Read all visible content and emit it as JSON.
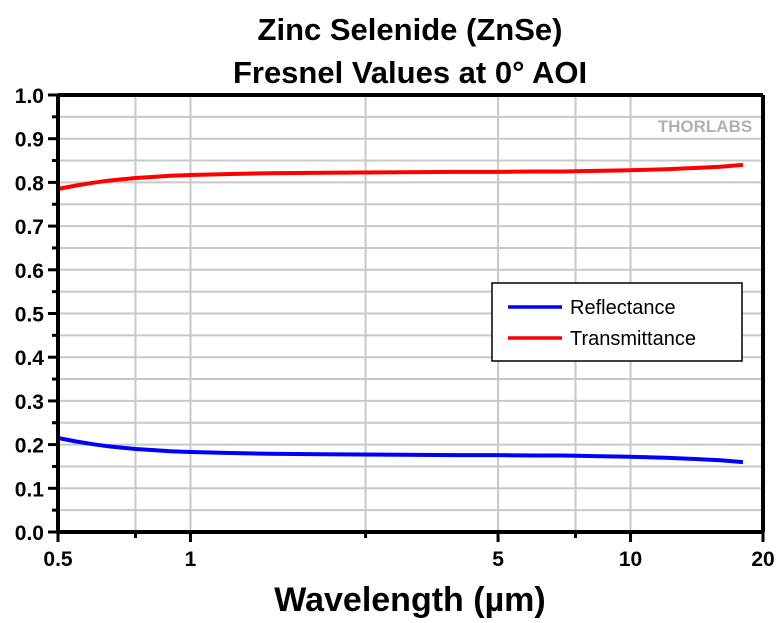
{
  "chart_data": {
    "type": "line",
    "title": "Zinc Selenide (ZnSe)",
    "subtitle": "Fresnel Values at 0° AOI",
    "xlabel": "Wavelength (µm)",
    "ylabel": "",
    "xscale": "log",
    "xlim": [
      0.5,
      20
    ],
    "ylim": [
      0.0,
      1.0
    ],
    "x_ticks": [
      {
        "value": 0.5,
        "label": "0.5"
      },
      {
        "value": 1,
        "label": "1"
      },
      {
        "value": 5,
        "label": "5"
      },
      {
        "value": 10,
        "label": "10"
      },
      {
        "value": 20,
        "label": "20"
      }
    ],
    "x_minor_ticks": [
      0.75,
      2.5,
      7.5
    ],
    "y_ticks": [
      {
        "value": 0.0,
        "label": "0.0"
      },
      {
        "value": 0.1,
        "label": "0.1"
      },
      {
        "value": 0.2,
        "label": "0.2"
      },
      {
        "value": 0.3,
        "label": "0.3"
      },
      {
        "value": 0.4,
        "label": "0.4"
      },
      {
        "value": 0.5,
        "label": "0.5"
      },
      {
        "value": 0.6,
        "label": "0.6"
      },
      {
        "value": 0.7,
        "label": "0.7"
      },
      {
        "value": 0.8,
        "label": "0.8"
      },
      {
        "value": 0.9,
        "label": "0.9"
      },
      {
        "value": 1.0,
        "label": "1.0"
      }
    ],
    "y_minor_ticks": [
      0.05,
      0.15,
      0.25,
      0.35,
      0.45,
      0.55,
      0.65,
      0.75,
      0.85,
      0.95
    ],
    "grid": true,
    "legend": {
      "placement": "center-right"
    },
    "watermark": "THORLABS",
    "series": [
      {
        "name": "Reflectance",
        "color": "#0000ff",
        "x": [
          0.5,
          0.55,
          0.6,
          0.65,
          0.7,
          0.75,
          0.8,
          0.9,
          1.0,
          1.2,
          1.5,
          2.0,
          3.0,
          4.0,
          5.0,
          6.0,
          7.0,
          8.0,
          10.0,
          12.0,
          14.0,
          16.0,
          18.0
        ],
        "y": [
          0.215,
          0.207,
          0.201,
          0.196,
          0.193,
          0.19,
          0.188,
          0.185,
          0.183,
          0.181,
          0.179,
          0.178,
          0.177,
          0.176,
          0.176,
          0.175,
          0.175,
          0.174,
          0.172,
          0.17,
          0.167,
          0.164,
          0.16
        ]
      },
      {
        "name": "Transmittance",
        "color": "#ff0000",
        "x": [
          0.5,
          0.55,
          0.6,
          0.65,
          0.7,
          0.75,
          0.8,
          0.9,
          1.0,
          1.2,
          1.5,
          2.0,
          3.0,
          4.0,
          5.0,
          6.0,
          7.0,
          8.0,
          10.0,
          12.0,
          14.0,
          16.0,
          18.0
        ],
        "y": [
          0.785,
          0.793,
          0.799,
          0.804,
          0.807,
          0.81,
          0.812,
          0.815,
          0.817,
          0.819,
          0.821,
          0.822,
          0.823,
          0.824,
          0.824,
          0.825,
          0.825,
          0.826,
          0.828,
          0.83,
          0.833,
          0.836,
          0.84
        ]
      }
    ]
  }
}
